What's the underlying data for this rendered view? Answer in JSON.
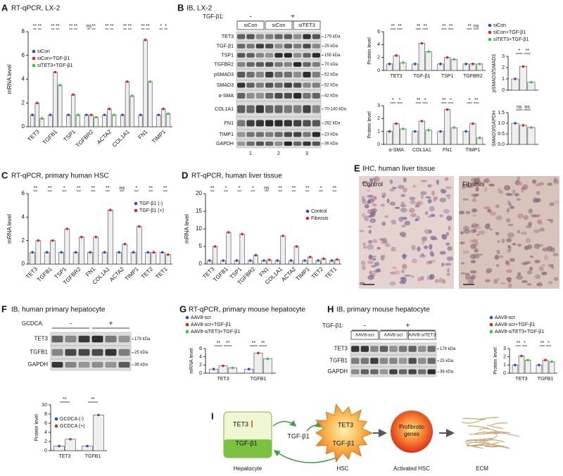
{
  "panel_labels": [
    "A",
    "B",
    "C",
    "D",
    "E",
    "F",
    "G",
    "H",
    "I"
  ],
  "chart_data": [
    {
      "type": "bar",
      "title": "RT-qPCR, LX-2",
      "ylabel": "mRNA level",
      "categories": [
        "TET3",
        "TGFB1",
        "TSP1",
        "TGFBR2",
        "ACTA2",
        "COL1A1",
        "FN1",
        "TIMP1"
      ],
      "series": [
        {
          "name": "siCon",
          "color": "#1f4fd8",
          "values": [
            1,
            1,
            1,
            1,
            1,
            1,
            1,
            1
          ]
        },
        {
          "name": "siCon+TGF-β1",
          "color": "#e02020",
          "values": [
            2.0,
            4.6,
            2.7,
            1.0,
            1.5,
            3.8,
            7.3,
            1.5
          ]
        },
        {
          "name": "siTET3+TGF-β1",
          "color": "#2ecc2e",
          "values": [
            0.7,
            3.5,
            1.0,
            0.8,
            1.0,
            2.6,
            3.8,
            1.1
          ]
        }
      ],
      "ylim": [
        0,
        8
      ],
      "yticks": [
        0,
        2,
        4,
        6,
        8
      ],
      "legend": "upper-left",
      "significance": [
        [
          "**",
          "**"
        ],
        [
          "**",
          "**"
        ],
        [
          "**",
          "**"
        ],
        [
          "ns",
          "**"
        ],
        [
          "**",
          "**"
        ],
        [
          "**",
          "**"
        ],
        [
          "**",
          "**"
        ],
        [
          "*",
          "*"
        ]
      ]
    },
    {
      "type": "bar",
      "ylabel": "Protein level",
      "categories": [
        "TET3",
        "TGF-β1",
        "TSP1",
        "TGFBR2"
      ],
      "series": [
        {
          "color": "#1f4fd8",
          "values": [
            1,
            1,
            1,
            1
          ]
        },
        {
          "color": "#e02020",
          "values": [
            2.3,
            4.2,
            2.0,
            1.0
          ]
        },
        {
          "color": "#2ecc2e",
          "values": [
            1.2,
            2.9,
            1.7,
            1.0
          ]
        }
      ],
      "ylim": [
        0,
        6
      ],
      "yticks": [
        0,
        2,
        4,
        6
      ],
      "significance": [
        [
          "**",
          "**"
        ],
        [
          "**",
          "**"
        ],
        [
          "**",
          "**"
        ],
        [
          "**",
          "ns"
        ]
      ]
    },
    {
      "type": "bar",
      "ylabel": "Protein level",
      "categories": [
        "α-SMA",
        "COL1A1",
        "FN1",
        "TIMP1"
      ],
      "series": [
        {
          "color": "#1f4fd8",
          "values": [
            1,
            1,
            1,
            1
          ]
        },
        {
          "color": "#e02020",
          "values": [
            1.6,
            1.8,
            2.7,
            1.6
          ]
        },
        {
          "color": "#2ecc2e",
          "values": [
            1.2,
            1.1,
            1.3,
            0.5
          ]
        }
      ],
      "ylim": [
        0,
        3
      ],
      "yticks": [
        0,
        1,
        2,
        3
      ],
      "significance": [
        [
          "*",
          "*"
        ],
        [
          "**",
          "*"
        ],
        [
          "**",
          "*"
        ],
        [
          "*",
          "**"
        ]
      ]
    },
    {
      "type": "bar",
      "ylabel": "pSMAD3/SMAD3",
      "categories": [
        null
      ],
      "series": [
        {
          "name": "siCon",
          "color": "#1f4fd8",
          "values": [
            1
          ]
        },
        {
          "name": "siCon+TGF-β1",
          "color": "#e02020",
          "values": [
            2.1
          ]
        },
        {
          "name": "siTET3+TGF-β1",
          "color": "#2ecc2e",
          "values": [
            0.7
          ]
        }
      ],
      "ylim": [
        0,
        3
      ],
      "yticks": [
        0,
        1,
        2,
        3
      ],
      "legend": "top",
      "significance": [
        [
          "*",
          "**"
        ]
      ]
    },
    {
      "type": "bar",
      "ylabel": "SMAD3/GAPDH",
      "categories": [
        null
      ],
      "series": [
        {
          "color": "#1f4fd8",
          "values": [
            1
          ]
        },
        {
          "color": "#e02020",
          "values": [
            0.9
          ]
        },
        {
          "color": "#2ecc2e",
          "values": [
            0.8
          ]
        }
      ],
      "ylim": [
        0,
        1.5
      ],
      "yticks": [
        {
          "value": 0,
          "label": "0.0"
        },
        {
          "value": 0.5,
          "label": "0.5"
        },
        {
          "value": 1,
          "label": "1.0"
        },
        {
          "value": 1.5,
          "label": "1.5"
        }
      ],
      "significance": [
        [
          "ns",
          "ns"
        ]
      ]
    },
    {
      "type": "bar",
      "title": "RT-qPCR, primary human HSC",
      "ylabel": "mRNA level",
      "categories": [
        "TET3",
        "TGFB1",
        "TSP1",
        "TGFBR2",
        "FN1",
        "COL1A1",
        "ACTA2",
        "TIMP1",
        "TET2",
        "TET1"
      ],
      "series": [
        {
          "name": "TGF-β1 (-)",
          "color": "#1f4fd8",
          "values": [
            1,
            1,
            1,
            1,
            1,
            1,
            1,
            1,
            1,
            1
          ]
        },
        {
          "name": "TGF-β1 (+)",
          "color": "#e02020",
          "values": [
            2.0,
            2.0,
            3.0,
            2.3,
            2.3,
            4.6,
            1.7,
            3.2,
            1.0,
            0.8
          ]
        }
      ],
      "ylim": [
        0,
        6
      ],
      "yticks": [
        0,
        2,
        4,
        6
      ],
      "legend": "upper-right",
      "significance": [
        [
          "**"
        ],
        [
          "**"
        ],
        [
          "*"
        ],
        [
          "**"
        ],
        [
          "**"
        ],
        [
          "**"
        ],
        [
          "ns"
        ],
        [
          "*"
        ],
        [
          "**"
        ],
        [
          "**"
        ]
      ]
    },
    {
      "type": "bar",
      "title": "RT-qPCR, human liver tissue",
      "ylabel": "mRNA level",
      "categories": [
        "TET3",
        "TGFB1",
        "TSP1",
        "TGFBR2",
        "FN1",
        "COL1A1",
        "ACTA2",
        "TIMP1",
        "TET2",
        "TET1"
      ],
      "series": [
        {
          "name": "Control",
          "color": "#1f4fd8",
          "values": [
            1,
            1,
            1,
            1,
            1,
            1,
            1,
            1,
            1,
            1
          ]
        },
        {
          "name": "Fibrosis",
          "color": "#e02020",
          "values": [
            5,
            9,
            8.5,
            2.5,
            1.2,
            8,
            5,
            2,
            1.5,
            1.3
          ]
        }
      ],
      "ylim": [
        0,
        20
      ],
      "yticks": [
        0,
        5,
        10,
        15,
        20
      ],
      "legend": "upper-right",
      "significance": [
        [
          "**"
        ],
        [
          "*"
        ],
        [
          "*"
        ],
        [
          "*"
        ],
        [
          "ns"
        ],
        [
          "**"
        ],
        [
          "**"
        ],
        [
          "**"
        ],
        [
          "*"
        ],
        [
          "**"
        ]
      ]
    },
    {
      "type": "bar",
      "ylabel": "Protein level",
      "categories": [
        "TET3",
        "TGFB1"
      ],
      "series": [
        {
          "name": "GCDCA (-)",
          "color": "#1f4fd8",
          "values": [
            1,
            1
          ]
        },
        {
          "name": "GCDCA (+)",
          "color": "#a03c3c",
          "values": [
            2.5,
            7.8
          ]
        }
      ],
      "ylim": [
        0,
        10
      ],
      "yticks": [
        0,
        2,
        4,
        6,
        8,
        10
      ],
      "legend": "upper-left",
      "significance": [
        [
          "**"
        ],
        [
          "**"
        ]
      ]
    },
    {
      "type": "bar",
      "title": "RT-qPCR, primary mouse hepatocyte",
      "ylabel": "mRNA level",
      "categories": [
        "TET3",
        "TGFB1"
      ],
      "series": [
        {
          "name": "AAV8-scr",
          "color": "#1f4fd8",
          "values": [
            1,
            1
          ]
        },
        {
          "name": "AAV8-scr+TGF-β1",
          "color": "#e02020",
          "values": [
            1.8,
            4.9
          ]
        },
        {
          "name": "AAV8-siTET3+TGF-β1",
          "color": "#2ecc2e",
          "values": [
            1.3,
            3.5
          ]
        }
      ],
      "ylim": [
        0,
        6
      ],
      "yticks": [
        0,
        2,
        4,
        6
      ],
      "legend": "top",
      "significance": [
        [
          "**",
          "**"
        ],
        [
          "**",
          "**"
        ]
      ]
    },
    {
      "type": "bar",
      "ylabel": "Protein level",
      "categories": [
        "TET3",
        "TGFB1"
      ],
      "series": [
        {
          "name": "AAV8-scr",
          "color": "#1f4fd8",
          "values": [
            1,
            1
          ]
        },
        {
          "name": "AAV8-scr+TGF-β1",
          "color": "#e02020",
          "values": [
            2.1,
            1.6
          ]
        },
        {
          "name": "AAV8-siTET3+TGF-β1",
          "color": "#2ecc2e",
          "values": [
            1.6,
            1.4
          ]
        }
      ],
      "ylim": [
        0,
        3
      ],
      "yticks": [
        0,
        1,
        2,
        3
      ],
      "legend": "top",
      "significance": [
        [
          "**",
          "*"
        ],
        [
          "**",
          "*"
        ]
      ]
    }
  ],
  "blots": [
    {
      "title": "IB, LX-2",
      "treatment": "TGF-β1:",
      "signs": [
        "-",
        "+"
      ],
      "groups": [
        "siCon",
        "siCon",
        "siTET3"
      ],
      "rows": [
        "TET3",
        "TGF-β1",
        "TSP1",
        "TGFBR2",
        "pSMAD3",
        "SMAD3",
        "α-SMA",
        "COL1A1",
        "FN1",
        "TIMP1",
        "GAPDH"
      ],
      "kda": [
        "179 kDa",
        "25 kDa",
        "155 kDa",
        "70 kDa",
        "52 kDa",
        "52 kDa",
        "42 kDa",
        "70-140 kDa",
        "262 kDa",
        "23 kDa",
        "36 kDa"
      ],
      "lanes": [
        "1",
        "2",
        "3"
      ]
    },
    {
      "title": "IB, human primary hepatocyte",
      "treatment": "GCDCA:",
      "signs": [
        "-",
        "+"
      ],
      "rows": [
        "TET3",
        "TGFB1",
        "GAPDH"
      ],
      "kda": [
        "179 kDa",
        "25 kDa",
        "36 kDa"
      ]
    },
    {
      "title": "IB, primary mouse hepatocyte",
      "treatment": "TGF-β1:",
      "signs": [
        "-",
        "+"
      ],
      "groups": [
        "AAV8-scr",
        "AAV8-scr",
        "AAV8-siTET3"
      ],
      "rows": [
        "TET3",
        "TGFB1",
        "GAPDH"
      ],
      "kda": [
        "179 kDa",
        "25 kDa",
        "36 kDa"
      ]
    }
  ],
  "ihc": {
    "title": "IHC, human liver tissue",
    "labels": [
      "Control",
      "Fibrosis"
    ]
  },
  "diagram": {
    "hepatocyte": {
      "label": "Hepatocyte",
      "tet3": "TET3",
      "tgfb1": "TGF-β1"
    },
    "secreted": "TGF-β1",
    "hsc": {
      "label": "HSC",
      "tet3": "TET3",
      "tgfb1": "TGF-β1"
    },
    "activated": {
      "label": "Activated HSC",
      "genes": [
        "Profibrotic",
        "genes"
      ]
    },
    "ecm": "ECM"
  }
}
